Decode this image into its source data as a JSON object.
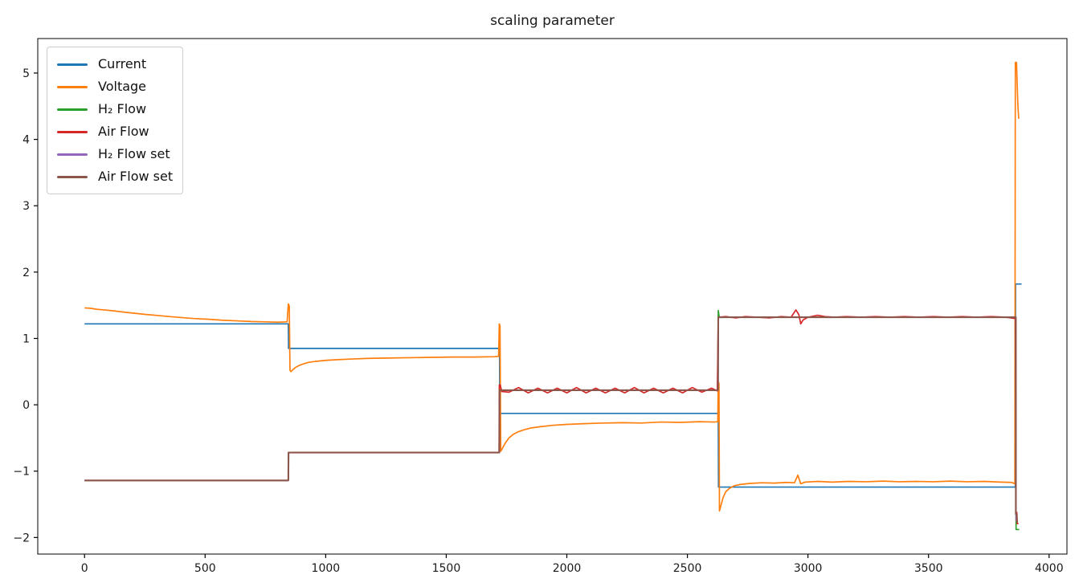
{
  "title": "scaling parameter",
  "chart_data": {
    "type": "line",
    "title": "scaling parameter",
    "xlabel": "",
    "ylabel": "",
    "xlim": [
      -194,
      4074
    ],
    "ylim": [
      -2.25,
      5.52
    ],
    "x_ticks": [
      0,
      500,
      1000,
      1500,
      2000,
      2500,
      3000,
      3500,
      4000
    ],
    "y_ticks": [
      -2,
      -1,
      0,
      1,
      2,
      3,
      4,
      5
    ],
    "grid": false,
    "legend_position": "upper-left",
    "background_color": "#ffffff",
    "spine_color": "#000000",
    "series": [
      {
        "name": "Current",
        "slug": "current",
        "color": "#1f77b4",
        "width": 1.7,
        "points": [
          [
            0,
            1.22
          ],
          [
            845,
            1.22
          ],
          [
            846,
            0.85
          ],
          [
            1721,
            0.85
          ],
          [
            1722,
            -0.13
          ],
          [
            2628,
            -0.13
          ],
          [
            2629,
            -1.24
          ],
          [
            3860,
            -1.24
          ],
          [
            3861,
            1.82
          ],
          [
            3886,
            1.82
          ]
        ]
      },
      {
        "name": "Voltage",
        "slug": "voltage",
        "color": "#ff7f0e",
        "width": 1.7,
        "points": [
          [
            0,
            1.46
          ],
          [
            25,
            1.455
          ],
          [
            50,
            1.44
          ],
          [
            80,
            1.43
          ],
          [
            110,
            1.42
          ],
          [
            145,
            1.405
          ],
          [
            180,
            1.39
          ],
          [
            220,
            1.375
          ],
          [
            260,
            1.36
          ],
          [
            305,
            1.345
          ],
          [
            350,
            1.33
          ],
          [
            400,
            1.315
          ],
          [
            455,
            1.3
          ],
          [
            510,
            1.29
          ],
          [
            570,
            1.275
          ],
          [
            630,
            1.265
          ],
          [
            690,
            1.255
          ],
          [
            750,
            1.25
          ],
          [
            800,
            1.245
          ],
          [
            840,
            1.25
          ],
          [
            845,
            1.52
          ],
          [
            849,
            1.49
          ],
          [
            852,
            0.52
          ],
          [
            856,
            0.5
          ],
          [
            864,
            0.53
          ],
          [
            874,
            0.56
          ],
          [
            888,
            0.59
          ],
          [
            906,
            0.615
          ],
          [
            930,
            0.64
          ],
          [
            960,
            0.655
          ],
          [
            1000,
            0.67
          ],
          [
            1050,
            0.68
          ],
          [
            1110,
            0.69
          ],
          [
            1180,
            0.7
          ],
          [
            1260,
            0.705
          ],
          [
            1350,
            0.71
          ],
          [
            1440,
            0.715
          ],
          [
            1530,
            0.72
          ],
          [
            1620,
            0.72
          ],
          [
            1700,
            0.725
          ],
          [
            1717,
            0.73
          ],
          [
            1720,
            1.22
          ],
          [
            1723,
            1.19
          ],
          [
            1726,
            -0.7
          ],
          [
            1731,
            -0.67
          ],
          [
            1738,
            -0.62
          ],
          [
            1748,
            -0.56
          ],
          [
            1760,
            -0.5
          ],
          [
            1776,
            -0.45
          ],
          [
            1796,
            -0.41
          ],
          [
            1820,
            -0.38
          ],
          [
            1850,
            -0.35
          ],
          [
            1890,
            -0.33
          ],
          [
            1940,
            -0.31
          ],
          [
            2000,
            -0.295
          ],
          [
            2070,
            -0.285
          ],
          [
            2150,
            -0.275
          ],
          [
            2230,
            -0.27
          ],
          [
            2310,
            -0.275
          ],
          [
            2390,
            -0.26
          ],
          [
            2470,
            -0.265
          ],
          [
            2550,
            -0.255
          ],
          [
            2610,
            -0.26
          ],
          [
            2626,
            -0.255
          ],
          [
            2628,
            0.35
          ],
          [
            2631,
            0.32
          ],
          [
            2633,
            -1.6
          ],
          [
            2639,
            -1.52
          ],
          [
            2648,
            -1.4
          ],
          [
            2659,
            -1.31
          ],
          [
            2674,
            -1.26
          ],
          [
            2694,
            -1.22
          ],
          [
            2720,
            -1.2
          ],
          [
            2760,
            -1.185
          ],
          [
            2810,
            -1.175
          ],
          [
            2860,
            -1.18
          ],
          [
            2910,
            -1.17
          ],
          [
            2944,
            -1.175
          ],
          [
            2958,
            -1.06
          ],
          [
            2970,
            -1.19
          ],
          [
            2988,
            -1.165
          ],
          [
            3040,
            -1.155
          ],
          [
            3100,
            -1.165
          ],
          [
            3170,
            -1.155
          ],
          [
            3240,
            -1.16
          ],
          [
            3310,
            -1.15
          ],
          [
            3380,
            -1.16
          ],
          [
            3450,
            -1.155
          ],
          [
            3520,
            -1.16
          ],
          [
            3590,
            -1.15
          ],
          [
            3660,
            -1.16
          ],
          [
            3730,
            -1.155
          ],
          [
            3800,
            -1.165
          ],
          [
            3845,
            -1.17
          ],
          [
            3858,
            -1.19
          ],
          [
            3860,
            5.16
          ],
          [
            3865,
            5.16
          ],
          [
            3868,
            4.78
          ],
          [
            3871,
            4.48
          ],
          [
            3874,
            4.31
          ]
        ]
      },
      {
        "name": "H₂ Flow",
        "slug": "h2-flow",
        "color": "#2ca02c",
        "width": 1.7,
        "points": [
          [
            0,
            -1.14
          ],
          [
            845,
            -1.14
          ],
          [
            846,
            -0.72
          ],
          [
            1720,
            -0.72
          ],
          [
            1721,
            0.22
          ],
          [
            2626,
            0.22
          ],
          [
            2628,
            1.42
          ],
          [
            2632,
            1.32
          ],
          [
            3861,
            1.32
          ],
          [
            3863,
            -1.88
          ],
          [
            3876,
            -1.88
          ]
        ]
      },
      {
        "name": "Air Flow",
        "slug": "air-flow",
        "color": "#d62728",
        "width": 1.7,
        "points": [
          [
            0,
            -1.14
          ],
          [
            845,
            -1.14
          ],
          [
            846,
            -0.72
          ],
          [
            1719,
            -0.72
          ],
          [
            1720,
            0.3
          ],
          [
            1724,
            0.3
          ],
          [
            1730,
            0.2
          ],
          [
            1760,
            0.19
          ],
          [
            1800,
            0.26
          ],
          [
            1840,
            0.18
          ],
          [
            1880,
            0.25
          ],
          [
            1920,
            0.18
          ],
          [
            1960,
            0.25
          ],
          [
            2000,
            0.18
          ],
          [
            2040,
            0.26
          ],
          [
            2080,
            0.18
          ],
          [
            2120,
            0.25
          ],
          [
            2160,
            0.18
          ],
          [
            2200,
            0.25
          ],
          [
            2240,
            0.18
          ],
          [
            2280,
            0.26
          ],
          [
            2320,
            0.18
          ],
          [
            2360,
            0.25
          ],
          [
            2400,
            0.18
          ],
          [
            2440,
            0.25
          ],
          [
            2480,
            0.18
          ],
          [
            2520,
            0.26
          ],
          [
            2560,
            0.19
          ],
          [
            2600,
            0.25
          ],
          [
            2624,
            0.21
          ],
          [
            2628,
            1.32
          ],
          [
            2660,
            1.33
          ],
          [
            2700,
            1.31
          ],
          [
            2740,
            1.33
          ],
          [
            2790,
            1.32
          ],
          [
            2840,
            1.31
          ],
          [
            2890,
            1.33
          ],
          [
            2930,
            1.32
          ],
          [
            2950,
            1.43
          ],
          [
            2962,
            1.36
          ],
          [
            2970,
            1.22
          ],
          [
            2980,
            1.28
          ],
          [
            3000,
            1.32
          ],
          [
            3040,
            1.35
          ],
          [
            3070,
            1.33
          ],
          [
            3110,
            1.32
          ],
          [
            3160,
            1.33
          ],
          [
            3220,
            1.32
          ],
          [
            3280,
            1.33
          ],
          [
            3340,
            1.32
          ],
          [
            3400,
            1.33
          ],
          [
            3460,
            1.32
          ],
          [
            3520,
            1.33
          ],
          [
            3580,
            1.32
          ],
          [
            3640,
            1.33
          ],
          [
            3700,
            1.32
          ],
          [
            3760,
            1.33
          ],
          [
            3820,
            1.32
          ],
          [
            3860,
            1.3
          ],
          [
            3863,
            -1.62
          ],
          [
            3866,
            -1.62
          ],
          [
            3868,
            -1.79
          ],
          [
            3873,
            -1.79
          ]
        ]
      },
      {
        "name": "H₂ Flow set",
        "slug": "h2-flow-set",
        "color": "#9467bd",
        "width": 1.7,
        "points": [
          [
            0,
            -1.14
          ],
          [
            845,
            -1.14
          ],
          [
            846,
            -0.72
          ],
          [
            1720,
            -0.72
          ],
          [
            1721,
            0.22
          ],
          [
            2627,
            0.22
          ],
          [
            2628,
            1.32
          ],
          [
            3862,
            1.32
          ],
          [
            3863,
            -1.74
          ],
          [
            3869,
            -1.74
          ]
        ]
      },
      {
        "name": "Air Flow set",
        "slug": "air-flow-set",
        "color": "#8c564b",
        "width": 2.1,
        "points": [
          [
            0,
            -1.14
          ],
          [
            845,
            -1.14
          ],
          [
            846,
            -0.72
          ],
          [
            1720,
            -0.72
          ],
          [
            1721,
            0.22
          ],
          [
            2627,
            0.22
          ],
          [
            2628,
            1.32
          ],
          [
            3862,
            1.32
          ],
          [
            3862,
            -1.65
          ],
          [
            3866,
            -1.65
          ],
          [
            3866,
            -1.76
          ],
          [
            3871,
            -1.76
          ]
        ]
      }
    ]
  }
}
